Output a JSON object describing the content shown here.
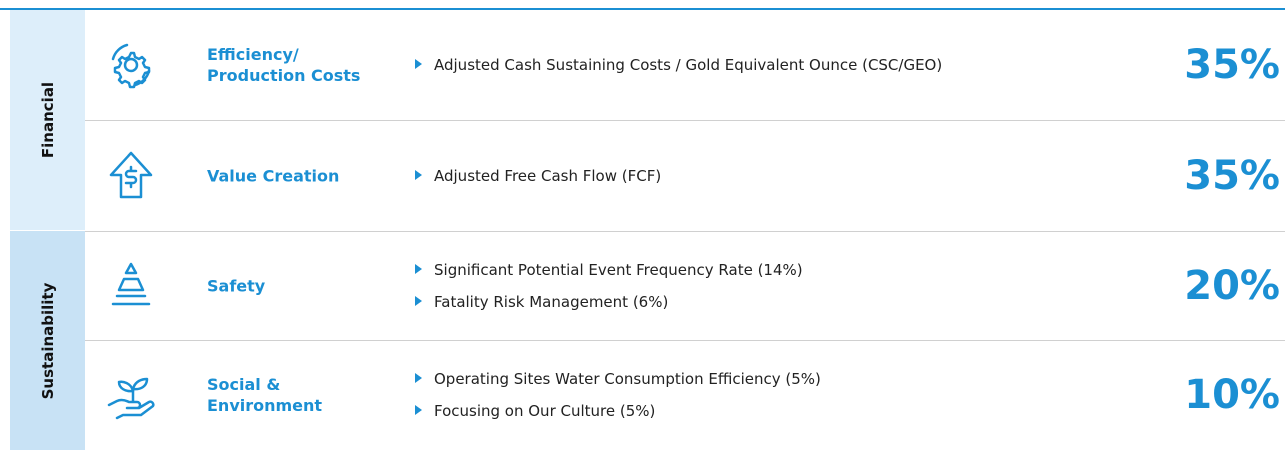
{
  "groups": [
    {
      "label": "Financial",
      "rows": [
        {
          "title": [
            "Efficiency/",
            "Production Costs"
          ],
          "bullets": [
            "Adjusted Cash Sustaining Costs / Gold Equivalent Ounce (CSC/GEO)"
          ],
          "weight": "35%"
        },
        {
          "title": [
            "Value Creation"
          ],
          "bullets": [
            "Adjusted Free Cash Flow (FCF)"
          ],
          "weight": "35%"
        }
      ]
    },
    {
      "label": "Sustainability",
      "rows": [
        {
          "title": [
            "Safety"
          ],
          "bullets": [
            "Significant Potential Event Frequency Rate (14%)",
            "Fatality Risk Management (6%)"
          ],
          "weight": "20%"
        },
        {
          "title": [
            "Social &",
            "Environment"
          ],
          "bullets": [
            "Operating Sites Water Consumption Efficiency (5%)",
            "Focusing on Our Culture (5%)"
          ],
          "weight": "10%"
        }
      ]
    }
  ]
}
